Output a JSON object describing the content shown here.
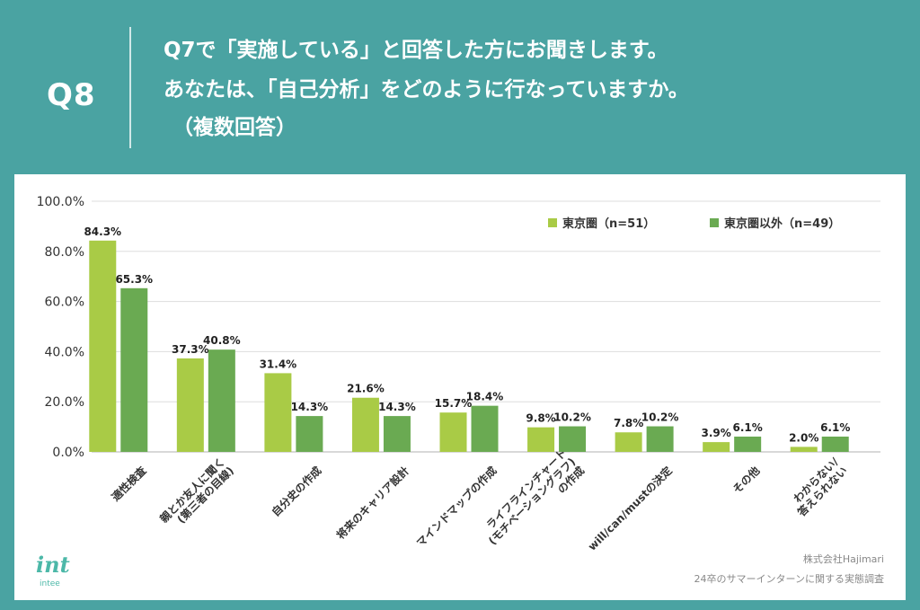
{
  "header": {
    "badge": "Q8",
    "question_line1": "Q7で「実施している」と回答した方にお聞きします。",
    "question_line2": "あなたは、「自己分析」をどのように行なっていますか。",
    "question_line3": "（複数回答）"
  },
  "colors": {
    "background": "#4aa3a2",
    "series1": "#a9cb46",
    "series2": "#6aaa52"
  },
  "chart_data": {
    "type": "bar",
    "ylim": [
      0,
      100
    ],
    "yticks": [
      "0.0%",
      "20.0%",
      "40.0%",
      "60.0%",
      "80.0%",
      "100.0%"
    ],
    "grid": true,
    "legend_position": "top-right",
    "categories": [
      [
        "適性検査"
      ],
      [
        "親とか友人に聞く",
        "(第三者の目線)"
      ],
      [
        "自分史の作成"
      ],
      [
        "将来のキャリア設計"
      ],
      [
        "マインドマップの作成"
      ],
      [
        "ライフラインチャート",
        "(モチベーショングラフ)",
        "の作成"
      ],
      [
        "will/can/mustの決定"
      ],
      [
        "その他"
      ],
      [
        "わからない/",
        "答えられない"
      ]
    ],
    "series": [
      {
        "name": "東京圏（n=51）",
        "values": [
          84.3,
          37.3,
          31.4,
          21.6,
          15.7,
          9.8,
          7.8,
          3.9,
          2.0
        ]
      },
      {
        "name": "東京圏以外（n=49）",
        "values": [
          65.3,
          40.8,
          14.3,
          14.3,
          18.4,
          10.2,
          10.2,
          6.1,
          6.1
        ]
      }
    ]
  },
  "footer": {
    "logo": "int",
    "brand": "intee",
    "company": "株式会社Hajimari",
    "survey": "24卒のサマーインターンに関する実態調査"
  }
}
